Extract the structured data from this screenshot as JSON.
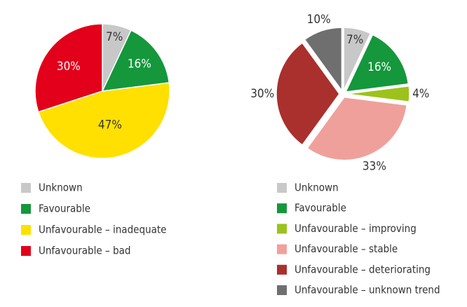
{
  "chart_data": [
    {
      "type": "pie",
      "categories": [
        "Unknown",
        "Favourable",
        "Unfavourable – inadequate",
        "Unfavourable – bad"
      ],
      "values": [
        7,
        16,
        47,
        30
      ],
      "value_labels": [
        "7%",
        "16%",
        "47%",
        "30%"
      ],
      "colors": [
        "#c8c8c8",
        "#15973c",
        "#ffe000",
        "#e2001a"
      ]
    },
    {
      "type": "pie",
      "categories": [
        "Unknown",
        "Favourable",
        "Unfavourable – improving",
        "Unfavourable – stable",
        "Unfavourable – deteriorating",
        "Unfavourable – unknown trend"
      ],
      "values": [
        7,
        16,
        4,
        33,
        30,
        10
      ],
      "value_labels": [
        "7%",
        "16%",
        "4%",
        "33%",
        "30%",
        "10%"
      ],
      "colors": [
        "#c8c8c8",
        "#15973c",
        "#9cc31b",
        "#f0a09b",
        "#a9302d",
        "#6f6f6f"
      ]
    }
  ]
}
